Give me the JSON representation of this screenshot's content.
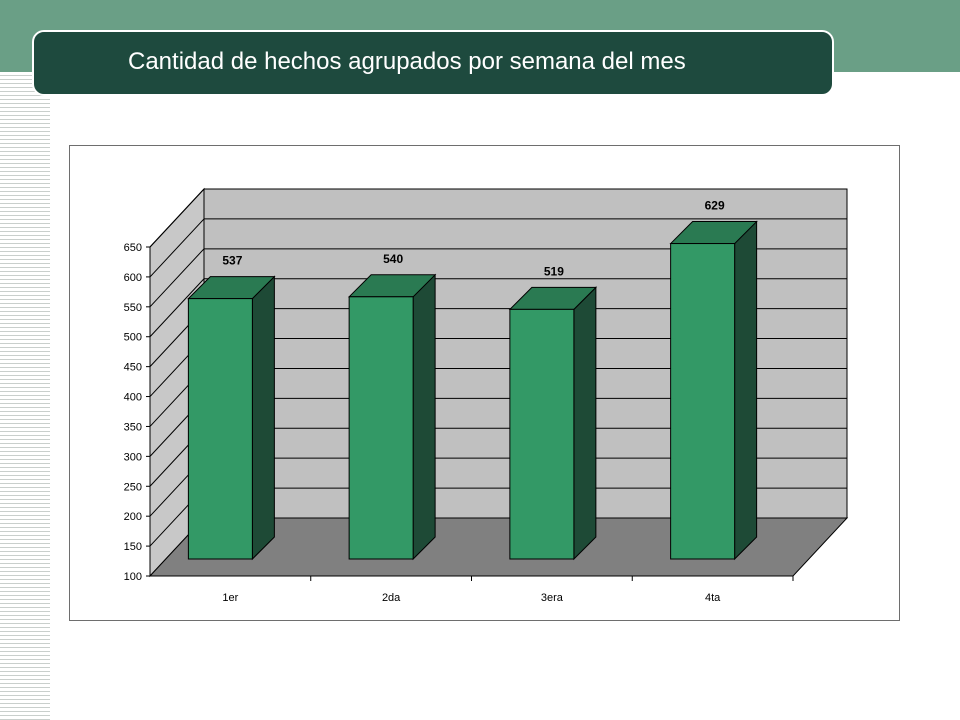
{
  "slide": {
    "title": "Cantidad de hechos agrupados por semana del mes"
  },
  "colors": {
    "header_band": "#6a9f86",
    "title_background": "#1e4a3e",
    "bar_front": "#339966",
    "bar_top": "#2a7a52",
    "bar_side": "#1e4a36",
    "back_wall": "#c0c0c0",
    "side_wall": "#c8c8c8",
    "floor": "#808080"
  },
  "chart_data": {
    "type": "bar",
    "style": "3d-column",
    "categories": [
      "1er",
      "2da",
      "3era",
      "4ta"
    ],
    "values": [
      537,
      540,
      519,
      629
    ],
    "data_labels": [
      "537",
      "540",
      "519",
      "629"
    ],
    "title": "",
    "xlabel": "",
    "ylabel": "",
    "ylim": [
      100,
      650
    ],
    "y_ticks": [
      100,
      150,
      200,
      250,
      300,
      350,
      400,
      450,
      500,
      550,
      600,
      650
    ],
    "grid": true,
    "legend": "none"
  }
}
